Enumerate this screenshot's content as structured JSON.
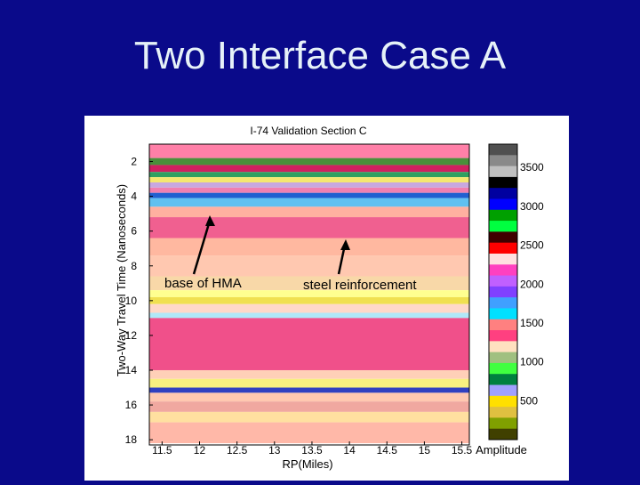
{
  "slide": {
    "title": "Two Interface Case A"
  },
  "chart_data": {
    "type": "heatmap",
    "title": "I-74 Validation Section C",
    "xlabel": "RP(Miles)",
    "ylabel": "Two-Way Travel Time (Nanoseconds)",
    "xlim": [
      11.5,
      15.5
    ],
    "ylim": [
      18,
      1
    ],
    "x_ticks": [
      "11.5",
      "12",
      "12.5",
      "13",
      "13.5",
      "14",
      "14.5",
      "15",
      "15.5"
    ],
    "y_ticks": [
      "2",
      "4",
      "6",
      "8",
      "10",
      "12",
      "14",
      "16",
      "18"
    ],
    "colorbar": {
      "label": "Amplitude",
      "ticks": [
        "500",
        "1000",
        "1500",
        "2000",
        "2500",
        "3000",
        "3500"
      ],
      "range": [
        0,
        3800
      ]
    },
    "annotations": [
      {
        "text": "base of HMA",
        "x": 12.2,
        "y": 4.5
      },
      {
        "text": "steel reinforcement",
        "x": 14.0,
        "y": 5.5
      }
    ],
    "bands": [
      {
        "from": 1.0,
        "to": 1.8,
        "color": "#ff80a8"
      },
      {
        "from": 1.8,
        "to": 2.2,
        "color": "#4a8f3a"
      },
      {
        "from": 2.2,
        "to": 2.6,
        "color": "#d02060"
      },
      {
        "from": 2.6,
        "to": 2.9,
        "color": "#30a060"
      },
      {
        "from": 2.9,
        "to": 3.2,
        "color": "#f5e870"
      },
      {
        "from": 3.2,
        "to": 3.5,
        "color": "#c8a8e0"
      },
      {
        "from": 3.5,
        "to": 3.8,
        "color": "#f080b0"
      },
      {
        "from": 3.8,
        "to": 4.1,
        "color": "#2060d0"
      },
      {
        "from": 4.1,
        "to": 4.6,
        "color": "#60c0f0"
      },
      {
        "from": 4.6,
        "to": 5.2,
        "color": "#ffb0a0"
      },
      {
        "from": 5.2,
        "to": 6.4,
        "color": "#f06090"
      },
      {
        "from": 6.4,
        "to": 7.4,
        "color": "#ffb8a0"
      },
      {
        "from": 7.4,
        "to": 8.6,
        "color": "#ffc8b0"
      },
      {
        "from": 8.6,
        "to": 9.4,
        "color": "#f8d8a8"
      },
      {
        "from": 9.4,
        "to": 9.8,
        "color": "#ffff90"
      },
      {
        "from": 9.8,
        "to": 10.2,
        "color": "#f0e050"
      },
      {
        "from": 10.2,
        "to": 10.7,
        "color": "#ffd8c8"
      },
      {
        "from": 10.7,
        "to": 11.0,
        "color": "#b0e8f8"
      },
      {
        "from": 11.0,
        "to": 14.0,
        "color": "#f0508a"
      },
      {
        "from": 14.0,
        "to": 14.5,
        "color": "#ffd0b8"
      },
      {
        "from": 14.5,
        "to": 15.0,
        "color": "#f8f080"
      },
      {
        "from": 15.0,
        "to": 15.3,
        "color": "#3040c0"
      },
      {
        "from": 15.3,
        "to": 15.8,
        "color": "#ffc8b0"
      },
      {
        "from": 15.8,
        "to": 16.4,
        "color": "#f0a8a0"
      },
      {
        "from": 16.4,
        "to": 17.0,
        "color": "#ffe0a0"
      },
      {
        "from": 17.0,
        "to": 18.2,
        "color": "#ffb8a8"
      }
    ],
    "colorbar_colors": [
      "#505050",
      "#8a8a8a",
      "#c0c0c0",
      "#000000",
      "#0000a0",
      "#0000ff",
      "#00a000",
      "#00ff40",
      "#400000",
      "#ff0000",
      "#ffe0e0",
      "#ff40c0",
      "#c060ff",
      "#8040ff",
      "#40a0ff",
      "#00e0ff",
      "#ff8080",
      "#ff4080",
      "#ffe0c0",
      "#a0c080",
      "#40ff40",
      "#008040",
      "#a0a0ff",
      "#ffe000",
      "#e0c040",
      "#80a000",
      "#404000"
    ]
  }
}
